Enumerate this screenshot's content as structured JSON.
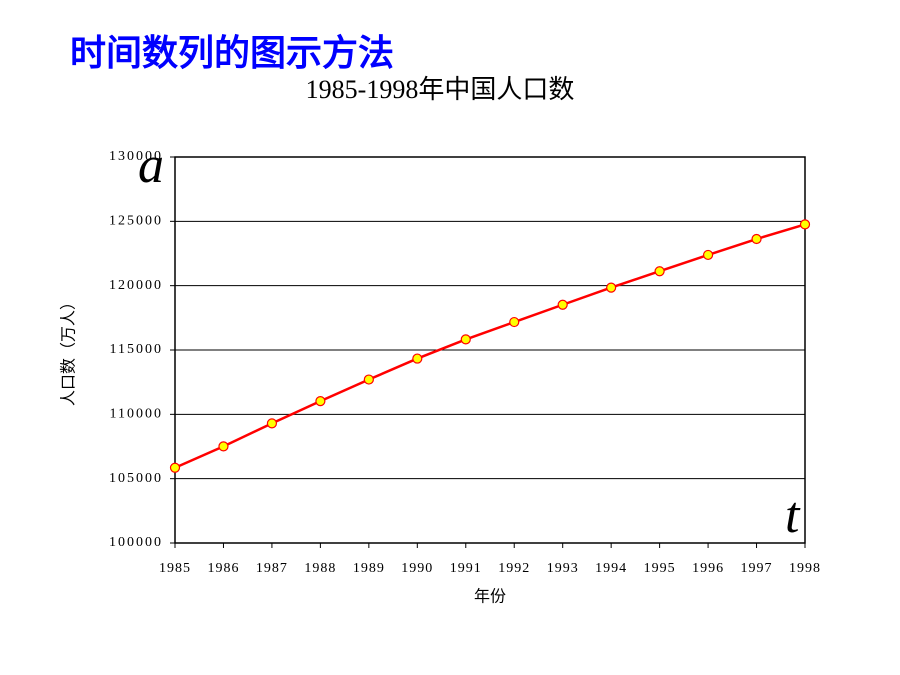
{
  "heading": "时间数列的图示方法",
  "chart_data": {
    "type": "line",
    "title": "1985-1998年中国人口数",
    "x_label": "年份",
    "y_label": "人口数（万人）",
    "y_symbol": "a",
    "x_symbol": "t",
    "x": [
      1985,
      1986,
      1987,
      1988,
      1989,
      1990,
      1991,
      1992,
      1993,
      1994,
      1995,
      1996,
      1997,
      1998
    ],
    "xlim": [
      1985,
      1998
    ],
    "xticks": [
      1985,
      1986,
      1987,
      1988,
      1989,
      1990,
      1991,
      1992,
      1993,
      1994,
      1995,
      1996,
      1997,
      1998
    ],
    "series": [
      {
        "color": "#ff0000",
        "marker_color": "#ffff00",
        "values": [
          105851,
          107507,
          109300,
          111026,
          112704,
          114333,
          115823,
          117171,
          118517,
          119850,
          121121,
          122389,
          123626,
          124761
        ]
      }
    ],
    "ylim": [
      100000,
      130000
    ],
    "yticks": [
      100000,
      105000,
      110000,
      115000,
      120000,
      125000,
      130000
    ],
    "grid": true
  }
}
